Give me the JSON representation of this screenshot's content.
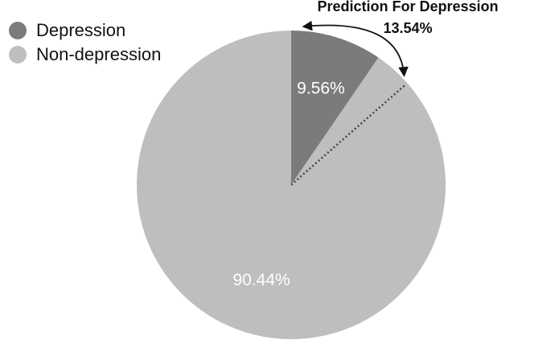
{
  "chart_data": {
    "type": "pie",
    "categories": [
      "Depression",
      "Non-depression"
    ],
    "values": [
      9.56,
      90.44
    ],
    "value_labels": [
      "9.56%",
      "90.44%"
    ],
    "colors": [
      "#7b7b7b",
      "#bebebe"
    ],
    "annotation": {
      "text": "Prediction For Depression",
      "value": 13.54,
      "label": "13.54%"
    }
  }
}
